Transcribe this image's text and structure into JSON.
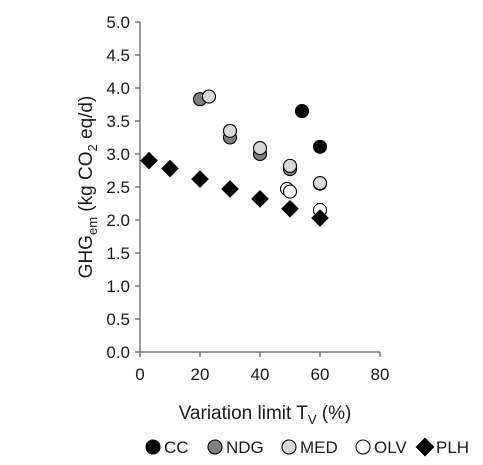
{
  "chart_data": {
    "type": "scatter",
    "xlabel": {
      "main": "Variation limit T",
      "sub": "V",
      "suffix": " (%)"
    },
    "ylabel": {
      "main": "GHG",
      "sub": "em",
      "mid": " (kg CO",
      "sub2": "2",
      "suffix": " eq/d)"
    },
    "xlim": [
      0,
      80
    ],
    "ylim": [
      0,
      5
    ],
    "xticks": [
      "0",
      "20",
      "40",
      "60",
      "80"
    ],
    "yticks": [
      "0.0",
      "0.5",
      "1.0",
      "1.5",
      "2.0",
      "2.5",
      "3.0",
      "3.5",
      "4.0",
      "4.5",
      "5.0"
    ],
    "grid": false,
    "legend_position": "bottom",
    "series": [
      {
        "name": "CC",
        "marker": "circle",
        "fill": "#000000",
        "stroke": "#000000",
        "points": [
          {
            "x": 54,
            "y": 3.65
          },
          {
            "x": 60,
            "y": 3.11
          }
        ]
      },
      {
        "name": "NDG",
        "marker": "circle",
        "fill": "#7f7f7f",
        "stroke": "#000000",
        "points": [
          {
            "x": 20,
            "y": 3.83
          },
          {
            "x": 30,
            "y": 3.25
          },
          {
            "x": 40,
            "y": 3.0
          },
          {
            "x": 50,
            "y": 2.77
          },
          {
            "x": 60,
            "y": 2.55
          }
        ]
      },
      {
        "name": "MED",
        "marker": "circle",
        "fill": "#d9d9d9",
        "stroke": "#000000",
        "points": [
          {
            "x": 23,
            "y": 3.87
          },
          {
            "x": 30,
            "y": 3.35
          },
          {
            "x": 40,
            "y": 3.09
          },
          {
            "x": 50,
            "y": 2.82
          },
          {
            "x": 60,
            "y": 2.56
          }
        ]
      },
      {
        "name": "OLV",
        "marker": "circle",
        "fill": "#ffffff",
        "stroke": "#000000",
        "points": [
          {
            "x": 49,
            "y": 2.47
          },
          {
            "x": 50,
            "y": 2.43
          },
          {
            "x": 60,
            "y": 2.15
          }
        ]
      },
      {
        "name": "PLH",
        "marker": "diamond",
        "fill": "#000000",
        "stroke": "#000000",
        "points": [
          {
            "x": 3,
            "y": 2.9
          },
          {
            "x": 10,
            "y": 2.78
          },
          {
            "x": 20,
            "y": 2.62
          },
          {
            "x": 30,
            "y": 2.47
          },
          {
            "x": 40,
            "y": 2.32
          },
          {
            "x": 50,
            "y": 2.17
          },
          {
            "x": 60,
            "y": 2.03
          }
        ]
      }
    ]
  }
}
